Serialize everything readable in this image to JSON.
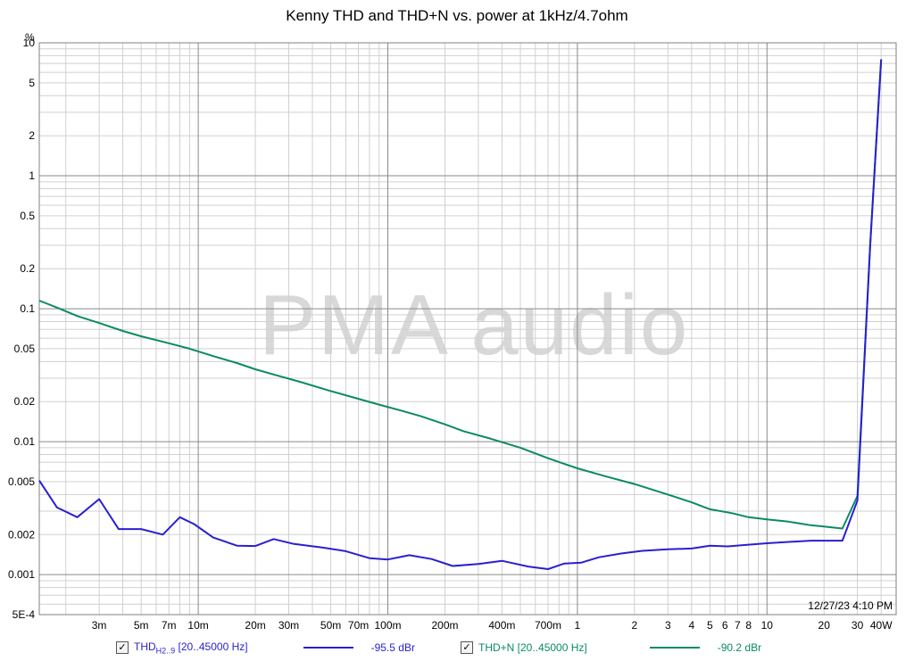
{
  "chart_data": {
    "type": "line",
    "title": "Kenny THD and THD+N vs. power at 1kHz/4.7ohm",
    "ylabel": "%",
    "xscale": "log",
    "yscale": "log",
    "xlim": [
      0.00145,
      48
    ],
    "ylim": [
      0.0005,
      10
    ],
    "grid": true,
    "x_tick_labels": [
      {
        "v": 0.003,
        "t": "3m"
      },
      {
        "v": 0.005,
        "t": "5m"
      },
      {
        "v": 0.007,
        "t": "7m"
      },
      {
        "v": 0.01,
        "t": "10m"
      },
      {
        "v": 0.02,
        "t": "20m"
      },
      {
        "v": 0.03,
        "t": "30m"
      },
      {
        "v": 0.05,
        "t": "50m"
      },
      {
        "v": 0.07,
        "t": "70m"
      },
      {
        "v": 0.1,
        "t": "100m"
      },
      {
        "v": 0.2,
        "t": "200m"
      },
      {
        "v": 0.4,
        "t": "400m"
      },
      {
        "v": 0.7,
        "t": "700m"
      },
      {
        "v": 1,
        "t": "1"
      },
      {
        "v": 2,
        "t": "2"
      },
      {
        "v": 3,
        "t": "3"
      },
      {
        "v": 4,
        "t": "4"
      },
      {
        "v": 5,
        "t": "5"
      },
      {
        "v": 6,
        "t": "6"
      },
      {
        "v": 7,
        "t": "7"
      },
      {
        "v": 8,
        "t": "8"
      },
      {
        "v": 10,
        "t": "10"
      },
      {
        "v": 20,
        "t": "20"
      },
      {
        "v": 30,
        "t": "30"
      },
      {
        "v": 40,
        "t": "40W"
      }
    ],
    "y_tick_labels": [
      {
        "v": 10,
        "t": "10"
      },
      {
        "v": 5,
        "t": "5"
      },
      {
        "v": 2,
        "t": "2"
      },
      {
        "v": 1,
        "t": "1"
      },
      {
        "v": 0.5,
        "t": "0.5"
      },
      {
        "v": 0.2,
        "t": "0.2"
      },
      {
        "v": 0.1,
        "t": "0.1"
      },
      {
        "v": 0.05,
        "t": "0.05"
      },
      {
        "v": 0.02,
        "t": "0.02"
      },
      {
        "v": 0.01,
        "t": "0.01"
      },
      {
        "v": 0.005,
        "t": "0.005"
      },
      {
        "v": 0.002,
        "t": "0.002"
      },
      {
        "v": 0.001,
        "t": "0.001"
      },
      {
        "v": 0.0005,
        "t": "5E-4"
      }
    ],
    "series": [
      {
        "name": "THD+N [20..45000 Hz]",
        "color": "#0a8a66",
        "points": [
          [
            0.00145,
            0.115
          ],
          [
            0.0018,
            0.102
          ],
          [
            0.0023,
            0.088
          ],
          [
            0.003,
            0.078
          ],
          [
            0.004,
            0.068
          ],
          [
            0.005,
            0.062
          ],
          [
            0.007,
            0.055
          ],
          [
            0.009,
            0.05
          ],
          [
            0.012,
            0.044
          ],
          [
            0.016,
            0.039
          ],
          [
            0.02,
            0.035
          ],
          [
            0.025,
            0.032
          ],
          [
            0.035,
            0.028
          ],
          [
            0.05,
            0.024
          ],
          [
            0.07,
            0.021
          ],
          [
            0.09,
            0.019
          ],
          [
            0.12,
            0.017
          ],
          [
            0.15,
            0.0155
          ],
          [
            0.2,
            0.0135
          ],
          [
            0.25,
            0.012
          ],
          [
            0.35,
            0.0105
          ],
          [
            0.5,
            0.009
          ],
          [
            0.7,
            0.0075
          ],
          [
            1,
            0.0063
          ],
          [
            1.4,
            0.0055
          ],
          [
            2,
            0.0048
          ],
          [
            3,
            0.004
          ],
          [
            4,
            0.0035
          ],
          [
            5,
            0.0031
          ],
          [
            6.5,
            0.0029
          ],
          [
            8,
            0.0027
          ],
          [
            10,
            0.0026
          ],
          [
            13,
            0.0025
          ],
          [
            17,
            0.00235
          ],
          [
            20,
            0.0023
          ],
          [
            25,
            0.00222
          ],
          [
            30,
            0.0039
          ],
          [
            35,
            0.3
          ],
          [
            40,
            7.5
          ]
        ]
      },
      {
        "name": "THD",
        "color": "#2a1fcf",
        "points": [
          [
            0.00145,
            0.0051
          ],
          [
            0.0018,
            0.0032
          ],
          [
            0.0023,
            0.0027
          ],
          [
            0.003,
            0.0037
          ],
          [
            0.0038,
            0.0022
          ],
          [
            0.005,
            0.0022
          ],
          [
            0.0065,
            0.002
          ],
          [
            0.008,
            0.0027
          ],
          [
            0.0095,
            0.0024
          ],
          [
            0.012,
            0.0019
          ],
          [
            0.016,
            0.00165
          ],
          [
            0.02,
            0.00164
          ],
          [
            0.025,
            0.00185
          ],
          [
            0.032,
            0.0017
          ],
          [
            0.045,
            0.0016
          ],
          [
            0.06,
            0.0015
          ],
          [
            0.08,
            0.00133
          ],
          [
            0.1,
            0.0013
          ],
          [
            0.13,
            0.0014
          ],
          [
            0.17,
            0.00131
          ],
          [
            0.22,
            0.00116
          ],
          [
            0.3,
            0.0012
          ],
          [
            0.4,
            0.00127
          ],
          [
            0.55,
            0.00115
          ],
          [
            0.7,
            0.0011
          ],
          [
            0.85,
            0.00121
          ],
          [
            1.05,
            0.00123
          ],
          [
            1.3,
            0.00135
          ],
          [
            1.7,
            0.00144
          ],
          [
            2.2,
            0.00151
          ],
          [
            3,
            0.00155
          ],
          [
            4,
            0.00157
          ],
          [
            5,
            0.00165
          ],
          [
            6.2,
            0.00163
          ],
          [
            8,
            0.00168
          ],
          [
            10,
            0.00172
          ],
          [
            13,
            0.00176
          ],
          [
            17,
            0.0018
          ],
          [
            22,
            0.0018
          ],
          [
            25,
            0.0018
          ],
          [
            30,
            0.0036
          ],
          [
            35,
            0.3
          ],
          [
            40,
            7.5
          ]
        ]
      }
    ]
  },
  "legend": {
    "thd_label": "THD",
    "thd_subscript": "H2..9",
    "thd_range": " [20..45000 Hz]",
    "thd_value": "-95.5 dBr",
    "thdn_label": "THD+N [20..45000 Hz]",
    "thdn_value": "-90.2 dBr",
    "thd_color": "#2a1fcf",
    "thdn_color": "#0a8a66"
  },
  "timestamp": "12/27/23 4:10 PM",
  "watermark": "PMA audio"
}
